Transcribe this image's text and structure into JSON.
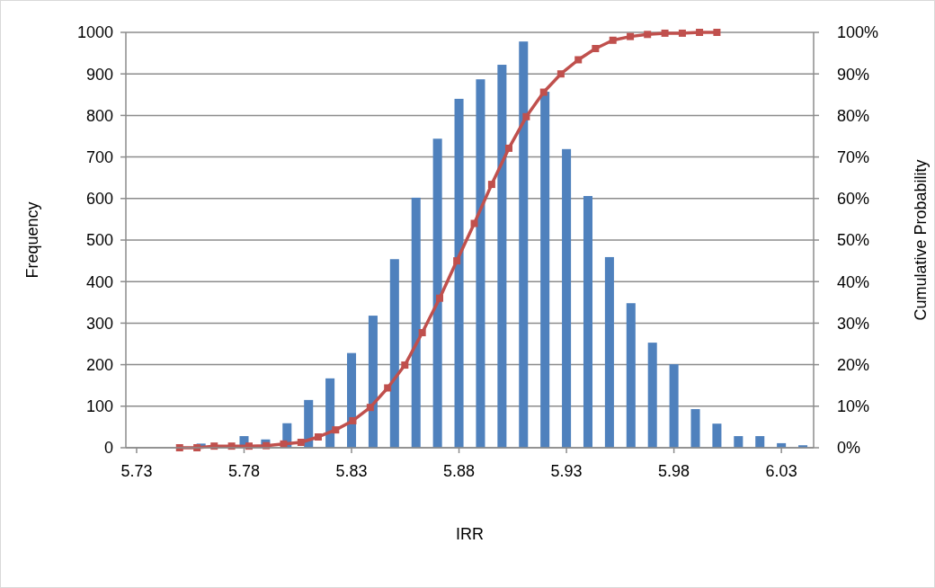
{
  "chart_data": {
    "type": "bar",
    "xlabel": "IRR",
    "ylabel": "Frequency",
    "y2label": "Cumulative Probability",
    "xlim": [
      5.725,
      6.045
    ],
    "xticks": [
      5.73,
      5.78,
      5.83,
      5.88,
      5.93,
      5.98,
      6.03
    ],
    "ylim": [
      0,
      1000
    ],
    "yticks": [
      0,
      100,
      200,
      300,
      400,
      500,
      600,
      700,
      800,
      900,
      1000
    ],
    "y2lim": [
      0,
      100
    ],
    "y2ticks": [
      {
        "value": 0,
        "label": "0%"
      },
      {
        "value": 10,
        "label": "10%"
      },
      {
        "value": 20,
        "label": "20%"
      },
      {
        "value": 30,
        "label": "30%"
      },
      {
        "value": 40,
        "label": "40%"
      },
      {
        "value": 50,
        "label": "50%"
      },
      {
        "value": 60,
        "label": "60%"
      },
      {
        "value": 70,
        "label": "70%"
      },
      {
        "value": 80,
        "label": "80%"
      },
      {
        "value": 90,
        "label": "90%"
      },
      {
        "value": 100,
        "label": "100%"
      }
    ],
    "grid": "y",
    "series": [
      {
        "color": "#4f81bd",
        "x": [
          5.73,
          5.74,
          5.75,
          5.76,
          5.77,
          5.78,
          5.79,
          5.8,
          5.81,
          5.82,
          5.83,
          5.84,
          5.85,
          5.86,
          5.87,
          5.88,
          5.89,
          5.9,
          5.91,
          5.92,
          5.93,
          5.94,
          5.95,
          5.96,
          5.97,
          5.98,
          5.99,
          6.0,
          6.01,
          6.02,
          6.03,
          6.04
        ],
        "values": [
          0,
          0,
          null,
          10,
          null,
          28,
          20,
          59,
          115,
          167,
          228,
          318,
          454,
          602,
          744,
          840,
          887,
          922,
          978,
          857,
          719,
          606,
          459,
          348,
          253,
          201,
          93,
          58,
          28,
          28,
          11,
          6
        ]
      },
      {
        "type": "line",
        "axis": "y2",
        "color": "#c0504d",
        "marker": "square",
        "line_style": "solid",
        "x": [
          5.75,
          5.7581,
          5.7661,
          5.7742,
          5.7823,
          5.7903,
          5.7984,
          5.8065,
          5.8145,
          5.8226,
          5.8306,
          5.8387,
          5.8468,
          5.8548,
          5.8629,
          5.871,
          5.879,
          5.8871,
          5.8952,
          5.9032,
          5.9113,
          5.9194,
          5.9274,
          5.9355,
          5.9435,
          5.9516,
          5.9597,
          5.9677,
          5.9758,
          5.9839,
          5.9919,
          6.0
        ],
        "values": [
          0,
          0,
          0.4,
          0.4,
          0.4,
          0.5,
          0.9,
          1.3,
          2.6,
          4.3,
          6.5,
          9.7,
          14.4,
          19.9,
          27.7,
          36.0,
          45.0,
          54.0,
          63.4,
          72.1,
          79.7,
          85.6,
          90.0,
          93.4,
          96.1,
          98.1,
          99.0,
          99.5,
          99.8,
          99.8,
          100,
          100
        ]
      }
    ]
  }
}
